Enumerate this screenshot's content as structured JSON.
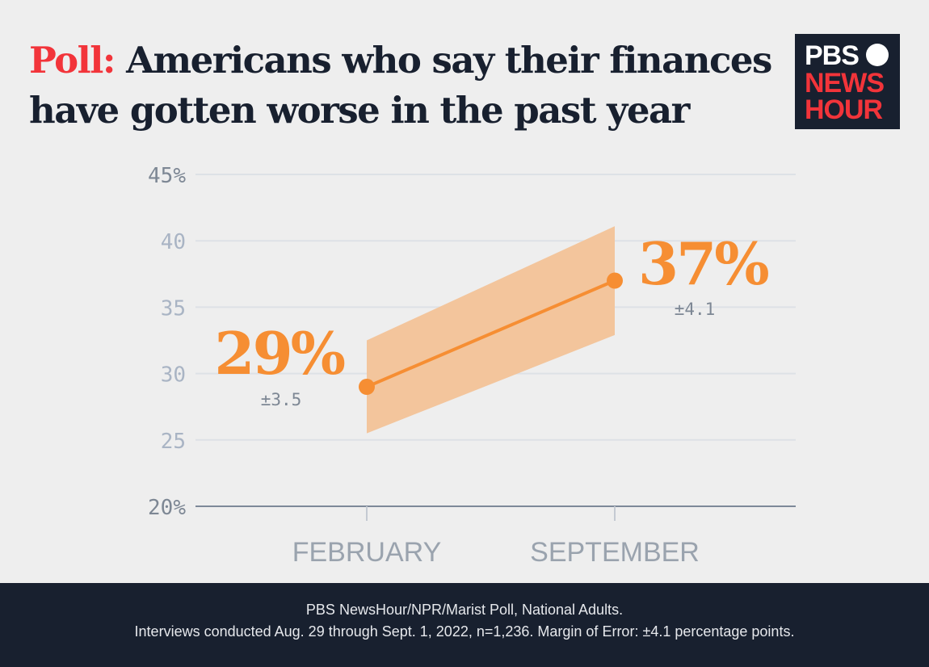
{
  "title": {
    "highlight": "Poll:",
    "text": " Americans who say their finances have gotten worse in the past year"
  },
  "logo": {
    "line1": "PBS",
    "line2": "NEWS",
    "line3": "HOUR"
  },
  "colors": {
    "series": "#f68e33",
    "band": "#f3c59c",
    "title_accent": "#f2343a",
    "footer_bg": "#18202f"
  },
  "chart_data": {
    "type": "line",
    "categories": [
      "FEBRUARY",
      "SEPTEMBER"
    ],
    "values": [
      29,
      37
    ],
    "margin_of_error": [
      3.5,
      4.1
    ],
    "data_labels": [
      "29%",
      "37%"
    ],
    "moe_labels": [
      "±3.5",
      "±4.1"
    ],
    "ylim": [
      20,
      45
    ],
    "yticks": [
      "20%",
      "25",
      "30",
      "35",
      "40",
      "45%"
    ],
    "ytick_values": [
      20,
      25,
      30,
      35,
      40,
      45
    ],
    "grid": true
  },
  "footer": {
    "line1": "PBS NewsHour/NPR/Marist Poll, National Adults.",
    "line2": "Interviews conducted Aug. 29 through Sept. 1, 2022, n=1,236. Margin of Error: ±4.1 percentage points."
  }
}
